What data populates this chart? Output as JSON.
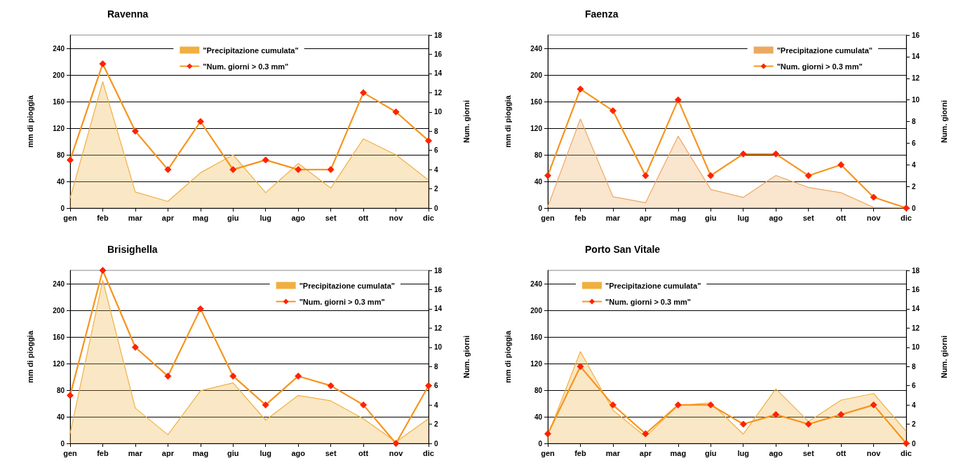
{
  "chart_data": [
    {
      "type": "area",
      "title": "Ravenna",
      "ylabel": "mm di pioggia",
      "y2label": "Num. giorni",
      "categories": [
        "gen",
        "feb",
        "mar",
        "apr",
        "mag",
        "giu",
        "lug",
        "ago",
        "set",
        "ott",
        "nov",
        "dic"
      ],
      "ylim": [
        0,
        260
      ],
      "yticks": [
        0,
        40,
        80,
        120,
        160,
        200,
        240
      ],
      "y2lim": [
        0,
        18
      ],
      "y2ticks": [
        0,
        2,
        4,
        6,
        8,
        10,
        12,
        14,
        16,
        18
      ],
      "grid": "y",
      "legend": "top",
      "series": [
        {
          "name": "\"Precipitazione cumulata\"",
          "color": "#f0b040",
          "values": [
            15,
            190,
            24,
            10,
            53,
            80,
            23,
            67,
            30,
            104,
            80,
            42
          ]
        },
        {
          "name": "\"Num. giorni > 0.3 mm\"",
          "type": "line",
          "marker": "diamond",
          "axis": "y2",
          "color": "#f7941d",
          "values": [
            5,
            15,
            8,
            4,
            9,
            4,
            5,
            4,
            4,
            12,
            10,
            7
          ]
        }
      ]
    },
    {
      "type": "area",
      "title": "Faenza",
      "ylabel": "mm di pioggia",
      "y2label": "Num. giorni",
      "categories": [
        "gen",
        "feb",
        "mar",
        "apr",
        "mag",
        "giu",
        "lug",
        "ago",
        "set",
        "ott",
        "nov",
        "dic"
      ],
      "ylim": [
        0,
        260
      ],
      "yticks": [
        0,
        40,
        80,
        120,
        160,
        200,
        240
      ],
      "y2lim": [
        0,
        16
      ],
      "y2ticks": [
        0,
        2,
        4,
        6,
        8,
        10,
        12,
        14,
        16
      ],
      "grid": "y",
      "legend": "top right",
      "series": [
        {
          "name": "\"Precipitazione cumulata\"",
          "color": "#eda860",
          "values": [
            2,
            134,
            17,
            8,
            108,
            28,
            16,
            49,
            31,
            23,
            1,
            0
          ]
        },
        {
          "name": "\"Num. giorni > 0.3 mm\"",
          "type": "line",
          "marker": "diamond",
          "axis": "y2",
          "color": "#f7941d",
          "values": [
            3,
            11,
            9,
            3,
            10,
            3,
            5,
            5,
            3,
            4,
            1,
            0
          ]
        }
      ]
    },
    {
      "type": "area",
      "title": "Brisighella",
      "ylabel": "mm di pioggia",
      "y2label": "Num. giorni",
      "categories": [
        "gen",
        "feb",
        "mar",
        "apr",
        "mag",
        "giu",
        "lug",
        "ago",
        "set",
        "ott",
        "nov",
        "dic"
      ],
      "ylim": [
        0,
        260
      ],
      "yticks": [
        0,
        40,
        80,
        120,
        160,
        200,
        240
      ],
      "y2lim": [
        0,
        18
      ],
      "y2ticks": [
        0,
        2,
        4,
        6,
        8,
        10,
        12,
        14,
        16,
        18
      ],
      "grid": "y",
      "legend": "top right",
      "series": [
        {
          "name": "\"Precipitazione cumulata\"",
          "color": "#f0b040",
          "values": [
            15,
            245,
            53,
            13,
            79,
            91,
            35,
            72,
            64,
            37,
            2,
            37
          ]
        },
        {
          "name": "\"Num. giorni > 0.3 mm\"",
          "type": "line",
          "marker": "diamond",
          "axis": "y2",
          "color": "#f7941d",
          "values": [
            5,
            18,
            10,
            7,
            14,
            7,
            4,
            7,
            6,
            4,
            0,
            6
          ]
        }
      ]
    },
    {
      "type": "area",
      "title": "Porto San Vitale",
      "ylabel": "mm di pioggia",
      "y2label": "Num. giorni",
      "categories": [
        "gen",
        "feb",
        "mar",
        "apr",
        "mag",
        "giu",
        "lug",
        "ago",
        "set",
        "ott",
        "nov",
        "dic"
      ],
      "ylim": [
        0,
        260
      ],
      "yticks": [
        0,
        40,
        80,
        120,
        160,
        200,
        240
      ],
      "y2lim": [
        0,
        18
      ],
      "y2ticks": [
        0,
        2,
        4,
        6,
        8,
        10,
        12,
        14,
        16,
        18
      ],
      "grid": "y",
      "legend": "top left",
      "series": [
        {
          "name": "\"Precipitazione cumulata\"",
          "color": "#f0b040",
          "values": [
            12,
            138,
            50,
            10,
            57,
            61,
            14,
            82,
            33,
            65,
            75,
            18
          ]
        },
        {
          "name": "\"Num. giorni > 0.3 mm\"",
          "type": "line",
          "marker": "diamond",
          "axis": "y2",
          "color": "#f7941d",
          "values": [
            1,
            8,
            4,
            1,
            4,
            4,
            2,
            3,
            2,
            3,
            4,
            0
          ]
        }
      ]
    }
  ]
}
